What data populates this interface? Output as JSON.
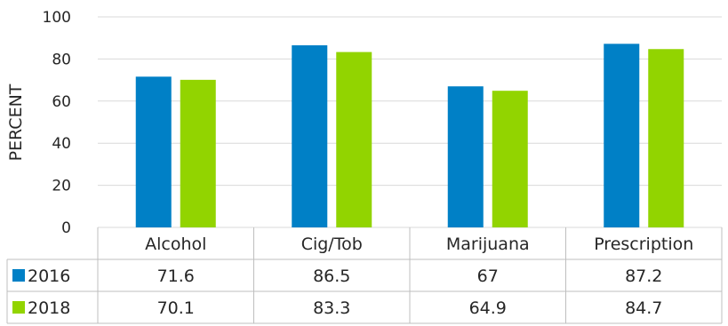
{
  "chart_data": {
    "type": "bar",
    "ylabel": "PERCENT",
    "ylim": [
      0,
      100
    ],
    "yticks": [
      0,
      20,
      40,
      60,
      80,
      100
    ],
    "grid": true,
    "categories": [
      "Alcohol",
      "Cig/Tob",
      "Marijuana",
      "Prescription"
    ],
    "series": [
      {
        "name": "2016",
        "values": [
          71.6,
          86.5,
          67,
          87.2
        ],
        "color": "#0080C6"
      },
      {
        "name": "2018",
        "values": [
          70.1,
          83.3,
          64.9,
          84.7
        ],
        "color": "#92D400"
      }
    ],
    "data_table": {
      "rows": [
        {
          "series": "2016",
          "cells": [
            "71.6",
            "86.5",
            "67",
            "87.2"
          ]
        },
        {
          "series": "2018",
          "cells": [
            "70.1",
            "83.3",
            "64.9",
            "84.7"
          ]
        }
      ]
    }
  }
}
